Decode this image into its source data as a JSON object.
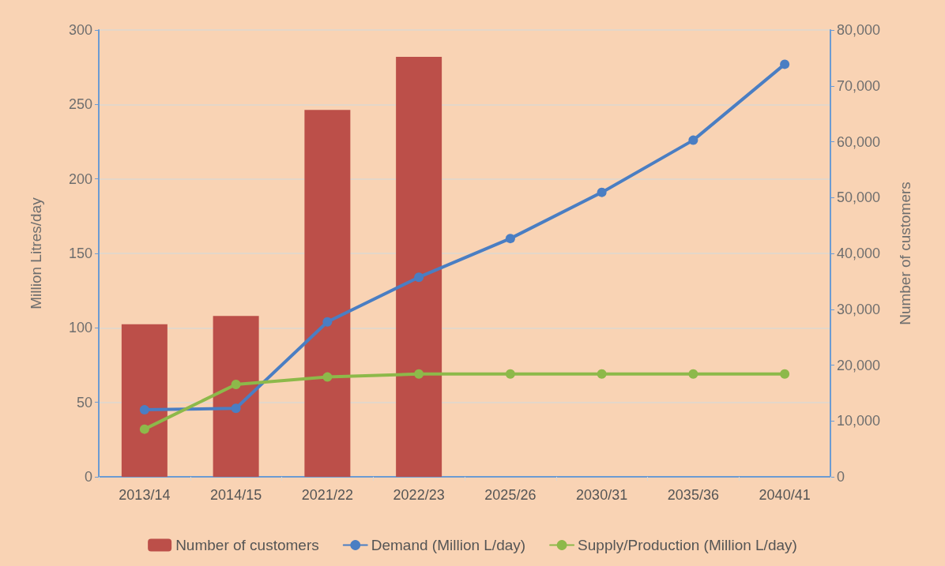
{
  "chart_data": {
    "type": "bar",
    "categories": [
      "2013/14",
      "2014/15",
      "2021/22",
      "2022/23",
      "2025/26",
      "2030/31",
      "2035/36",
      "2040/41"
    ],
    "series": [
      {
        "name": "Number of customers",
        "axis": "y2",
        "color": "#bc4f49",
        "values": [
          27300,
          28800,
          65700,
          75200,
          null,
          null,
          null,
          null
        ]
      },
      {
        "name": "Demand (Million L/day)",
        "type": "line",
        "color": "#4a7ec3",
        "values": [
          45,
          46,
          104,
          134,
          160,
          191,
          226,
          277
        ]
      },
      {
        "name": "Supply/Production (Million L/day)",
        "type": "line",
        "color": "#8db94a",
        "values": [
          32,
          62,
          67,
          69,
          69,
          69,
          69,
          69
        ]
      }
    ],
    "ylabel": "Million Litres/day",
    "y2label": "Number of customers",
    "ylim": [
      0,
      300
    ],
    "yticks": [
      0,
      50,
      100,
      150,
      200,
      250,
      300
    ],
    "y2lim": [
      0,
      80000
    ],
    "y2ticks": [
      0,
      {
        "value": 10000,
        "label": "10,000"
      },
      {
        "value": 20000,
        "label": "20,000"
      },
      {
        "value": 30000,
        "label": "30,000"
      },
      {
        "value": 40000,
        "label": "40,000"
      },
      {
        "value": 50000,
        "label": "50,000"
      },
      {
        "value": 60000,
        "label": "60,000"
      },
      {
        "value": 70000,
        "label": "70,000"
      },
      {
        "value": 80000,
        "label": "80,000"
      }
    ],
    "grid": "y",
    "legend": "bottom",
    "marker": "circle",
    "line_style": "solid"
  }
}
